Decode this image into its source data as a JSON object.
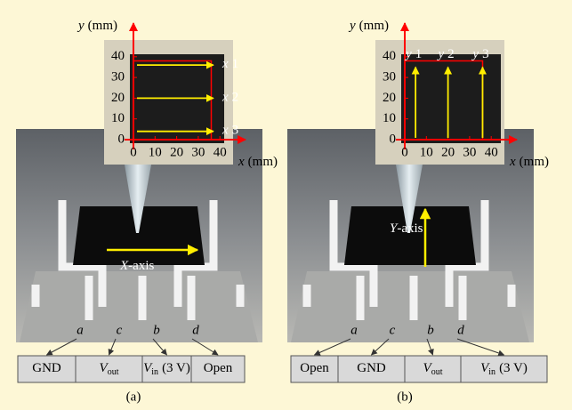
{
  "panels": [
    {
      "inset": {
        "y_label": {
          "var": "y",
          "unit": "(mm)"
        },
        "x_label": {
          "var": "x",
          "unit": "(mm)"
        },
        "xticks": [
          0,
          10,
          20,
          30,
          40
        ],
        "yticks": [
          0,
          10,
          20,
          30,
          40
        ],
        "scan_lines": [
          {
            "var": "x",
            "index": "1"
          },
          {
            "var": "x",
            "index": "2"
          },
          {
            "var": "x",
            "index": "3"
          }
        ]
      },
      "axis_label": {
        "var": "X",
        "text": "-axis"
      },
      "pads": [
        "a",
        "c",
        "b",
        "d"
      ],
      "terminals": [
        {
          "text": "GND"
        },
        {
          "var": "V",
          "sub": "out"
        },
        {
          "var": "V",
          "sub": "in",
          "suffix": "(3 V)"
        },
        {
          "text": "Open"
        }
      ],
      "caption": "(a)"
    },
    {
      "inset": {
        "y_label": {
          "var": "y",
          "unit": "(mm)"
        },
        "x_label": {
          "var": "x",
          "unit": "(mm)"
        },
        "xticks": [
          0,
          10,
          20,
          30,
          40
        ],
        "yticks": [
          0,
          10,
          20,
          30,
          40
        ],
        "scan_lines": [
          {
            "var": "y",
            "index": "1"
          },
          {
            "var": "y",
            "index": "2"
          },
          {
            "var": "y",
            "index": "3"
          }
        ]
      },
      "axis_label": {
        "var": "Y",
        "text": "-axis"
      },
      "pads": [
        "a",
        "c",
        "b",
        "d"
      ],
      "terminals": [
        {
          "text": "Open"
        },
        {
          "text": "GND"
        },
        {
          "var": "V",
          "sub": "out"
        },
        {
          "var": "V",
          "sub": "in",
          "suffix": "(3 V)"
        }
      ],
      "caption": "(b)"
    }
  ]
}
